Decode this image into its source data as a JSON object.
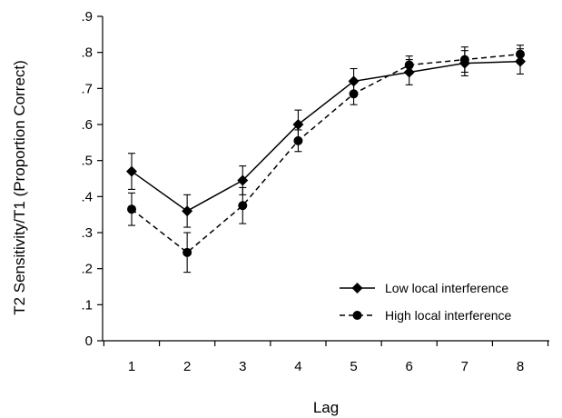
{
  "chart_data": {
    "type": "line",
    "xlabel": "Lag",
    "ylabel": "T2 Sensitivity/T1 (Proportion Correct)",
    "x": [
      1,
      2,
      3,
      4,
      5,
      6,
      7,
      8
    ],
    "ylim": [
      0,
      0.9
    ],
    "y_ticks": [
      0,
      0.1,
      0.2,
      0.3,
      0.4,
      0.5,
      0.6,
      0.7,
      0.8,
      0.9
    ],
    "y_tick_labels": [
      "0",
      ".1",
      ".2",
      ".3",
      ".4",
      ".5",
      ".6",
      ".7",
      ".8",
      ".9"
    ],
    "x_tick_labels": [
      "1",
      "2",
      "3",
      "4",
      "5",
      "6",
      "7",
      "8"
    ],
    "grid": false,
    "legend_position": "bottom-right",
    "series": [
      {
        "name": "Low local interference",
        "marker": "diamond",
        "line_style": "solid",
        "values": [
          0.47,
          0.36,
          0.445,
          0.6,
          0.72,
          0.745,
          0.77,
          0.775
        ],
        "errors": [
          0.05,
          0.045,
          0.04,
          0.04,
          0.035,
          0.035,
          0.035,
          0.035
        ]
      },
      {
        "name": "High local interference",
        "marker": "circle",
        "line_style": "dashed",
        "values": [
          0.365,
          0.245,
          0.375,
          0.555,
          0.685,
          0.765,
          0.78,
          0.795
        ],
        "errors": [
          0.045,
          0.055,
          0.05,
          0.03,
          0.03,
          0.025,
          0.035,
          0.025
        ]
      }
    ]
  }
}
